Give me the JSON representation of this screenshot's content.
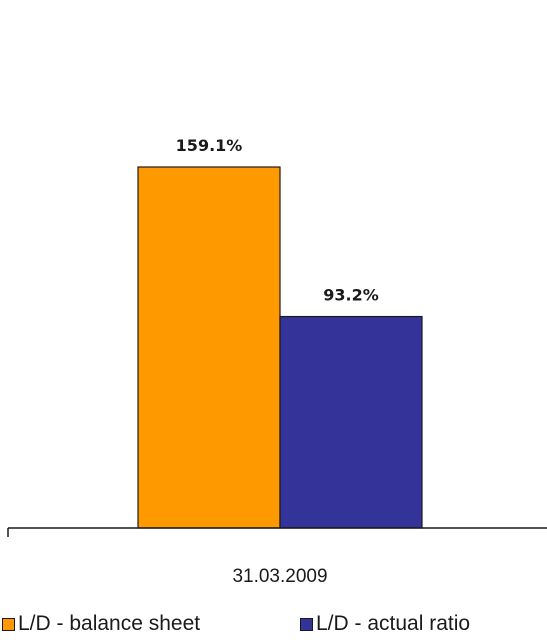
{
  "chart_data": {
    "type": "bar",
    "categories": [
      "31.03.2009"
    ],
    "series": [
      {
        "name": "L/D - balance sheet",
        "values": [
          159.1
        ],
        "label": "159.1%",
        "color": "#FF9900"
      },
      {
        "name": "L/D - actual ratio",
        "values": [
          93.2
        ],
        "label": "93.2%",
        "color": "#333399"
      }
    ],
    "ylim": [
      0,
      200
    ],
    "grid": false,
    "legend_position": "bottom"
  }
}
